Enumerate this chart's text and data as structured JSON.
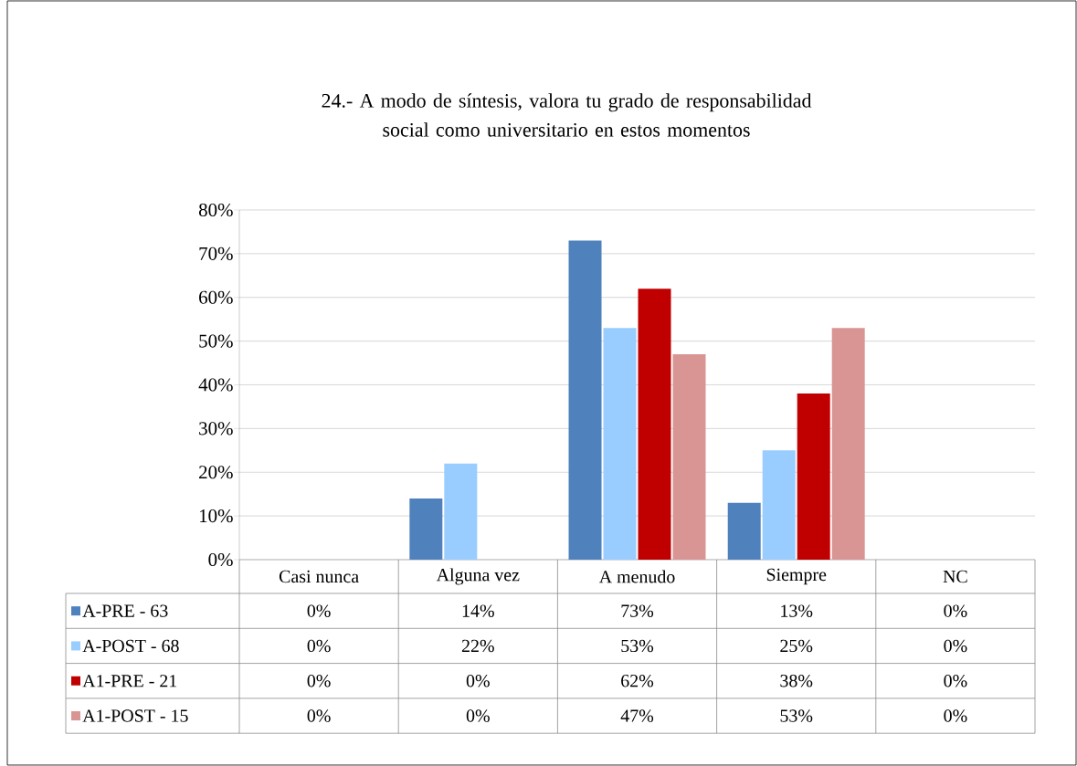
{
  "chart_data": {
    "type": "bar",
    "title": "24.- A modo de síntesis, valora tu grado de responsabilidad social como universitario en estos momentos",
    "categories": [
      "Casi nunca",
      "Alguna vez",
      "A menudo",
      "Siempre",
      "NC"
    ],
    "series": [
      {
        "name": "A-PRE - 63",
        "color": "#4f81bd",
        "values": [
          0,
          14,
          73,
          13,
          0
        ],
        "value_labels": [
          "0%",
          "14%",
          "73%",
          "13%",
          "0%"
        ]
      },
      {
        "name": "A-POST - 68",
        "color": "#99ccff",
        "values": [
          0,
          22,
          53,
          25,
          0
        ],
        "value_labels": [
          "0%",
          "22%",
          "53%",
          "25%",
          "0%"
        ]
      },
      {
        "name": "A1-PRE - 21",
        "color": "#c00000",
        "values": [
          0,
          0,
          62,
          38,
          0
        ],
        "value_labels": [
          "0%",
          "0%",
          "62%",
          "38%",
          "0%"
        ]
      },
      {
        "name": "A1-POST - 15",
        "color": "#d99594",
        "values": [
          0,
          0,
          47,
          53,
          0
        ],
        "value_labels": [
          "0%",
          "0%",
          "47%",
          "53%",
          "0%"
        ]
      }
    ],
    "ylim": [
      0,
      80
    ],
    "yticks": [
      {
        "value": 0,
        "label": "0%"
      },
      {
        "value": 10,
        "label": "10%"
      },
      {
        "value": 20,
        "label": "20%"
      },
      {
        "value": 30,
        "label": "30%"
      },
      {
        "value": 40,
        "label": "40%"
      },
      {
        "value": 50,
        "label": "50%"
      },
      {
        "value": 60,
        "label": "60%"
      },
      {
        "value": 70,
        "label": "70%"
      },
      {
        "value": 80,
        "label": "80%"
      }
    ],
    "grid": "y",
    "legend": "bottom"
  }
}
